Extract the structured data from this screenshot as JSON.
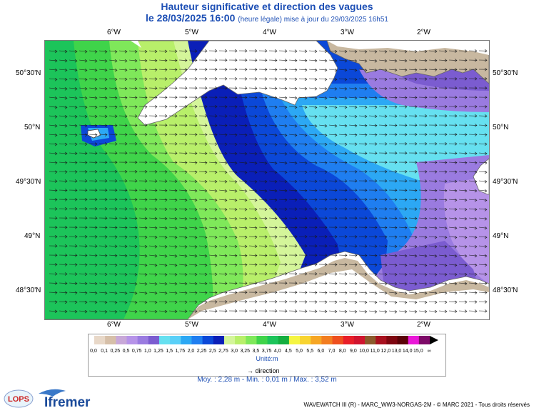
{
  "header": {
    "title": "Hauteur significative et direction des vagues",
    "date_line": "le 28/03/2025 16:00",
    "update_note": "(heure légale) mise à jour du 29/03/2025 16h51"
  },
  "axes": {
    "lon_labels": [
      "6°W",
      "5°W",
      "4°W",
      "3°W",
      "2°W"
    ],
    "lat_labels": [
      "50°30'N",
      "50°N",
      "49°30'N",
      "49°N",
      "48°30'N"
    ]
  },
  "legend": {
    "values": [
      "0,0",
      "0,1",
      "0,25",
      "0,5",
      "0,75",
      "1,0",
      "1,25",
      "1,5",
      "1,75",
      "2,0",
      "2,25",
      "2,5",
      "2,75",
      "3,0",
      "3,25",
      "3,5",
      "3,75",
      "4,0",
      "4,5",
      "5,0",
      "5,5",
      "6,0",
      "7,0",
      "8,0",
      "9,0",
      "10,0",
      "11,0",
      "12,0",
      "13,0",
      "14,0",
      "15,0",
      "∞"
    ],
    "colors": [
      "#e8d8c8",
      "#d6bfa8",
      "#c8a8d8",
      "#b693e8",
      "#9a7be0",
      "#7b5cd0",
      "#66e0f0",
      "#5ad0f8",
      "#2ca8f4",
      "#1f7ef0",
      "#0b48d8",
      "#0a1fb8",
      "#d4f59a",
      "#b8ef6a",
      "#7fe85a",
      "#3fd44a",
      "#1cc45a",
      "#14ae40",
      "#f5f542",
      "#f8d430",
      "#f6a624",
      "#f27d20",
      "#ee4f1e",
      "#e81e28",
      "#d0142e",
      "#8b5a2b",
      "#a8101e",
      "#7e0610",
      "#5a0208",
      "#ea18d8",
      "#7e0a68"
    ],
    "unit_label": "Unité:m",
    "direction_label": "direction"
  },
  "stats": {
    "text": "Moy. : 2,28 m   -   Min. : 0,01 m / Max. : 3,52 m"
  },
  "footer": {
    "credit": "WAVEWATCH III (R) - MARC_WW3-NORGAS-2M - © MARC 2021 - Tous droits réservés",
    "logo_lops": "LOPS",
    "logo_ifremer": "Ifremer"
  },
  "map_colors": {
    "deep_green": "#1cc45a",
    "green": "#3fd44a",
    "light_green": "#7fe85a",
    "pale_green": "#b8ef6a",
    "yellow_green": "#d4f59a",
    "navy": "#0a1fb8",
    "blue": "#0b48d8",
    "mid_blue": "#1f7ef0",
    "sky": "#2ca8f4",
    "cyan": "#66e0f0",
    "lavender": "#b693e8",
    "purple": "#9a7be0",
    "violet": "#7b5cd0",
    "land": "#c8b8a0",
    "arrow": "#1a1a1a"
  }
}
